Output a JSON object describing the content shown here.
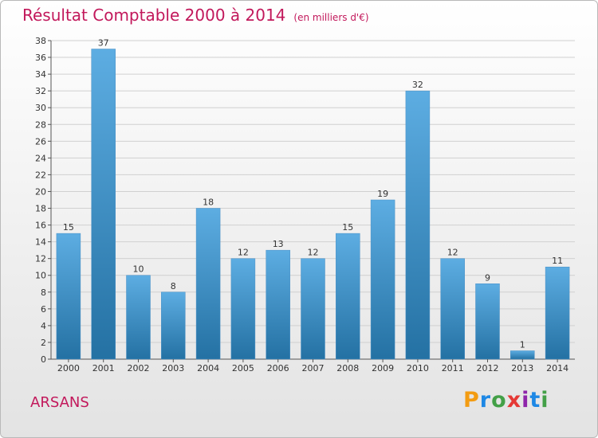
{
  "header": {
    "title": "Résultat Comptable 2000 à 2014",
    "subtitle": "(en milliers d'€)"
  },
  "location": "ARSANS",
  "logo": {
    "letters": [
      "P",
      "r",
      "o",
      "x",
      "i",
      "t",
      "i"
    ],
    "colors": [
      "#f39c12",
      "#1e88e5",
      "#43a047",
      "#e53935",
      "#8e24aa",
      "#1e88e5",
      "#43a047"
    ]
  },
  "colors": {
    "title": "#c2185b",
    "bar_light": "#5dade2",
    "bar_dark": "#2471a3",
    "grid": "#d0d0d0",
    "axis": "#555555"
  },
  "chart_data": {
    "type": "bar",
    "categories": [
      "2000",
      "2001",
      "2002",
      "2003",
      "2004",
      "2005",
      "2006",
      "2007",
      "2008",
      "2009",
      "2010",
      "2011",
      "2012",
      "2013",
      "2014"
    ],
    "values": [
      15,
      37,
      10,
      8,
      18,
      12,
      13,
      12,
      15,
      19,
      32,
      12,
      9,
      1,
      11
    ],
    "ylim": [
      0,
      38
    ],
    "yticks": [
      0,
      2,
      4,
      6,
      8,
      10,
      12,
      14,
      16,
      18,
      20,
      22,
      24,
      26,
      28,
      30,
      32,
      34,
      36,
      38
    ],
    "grid": true,
    "data_labels": true
  }
}
